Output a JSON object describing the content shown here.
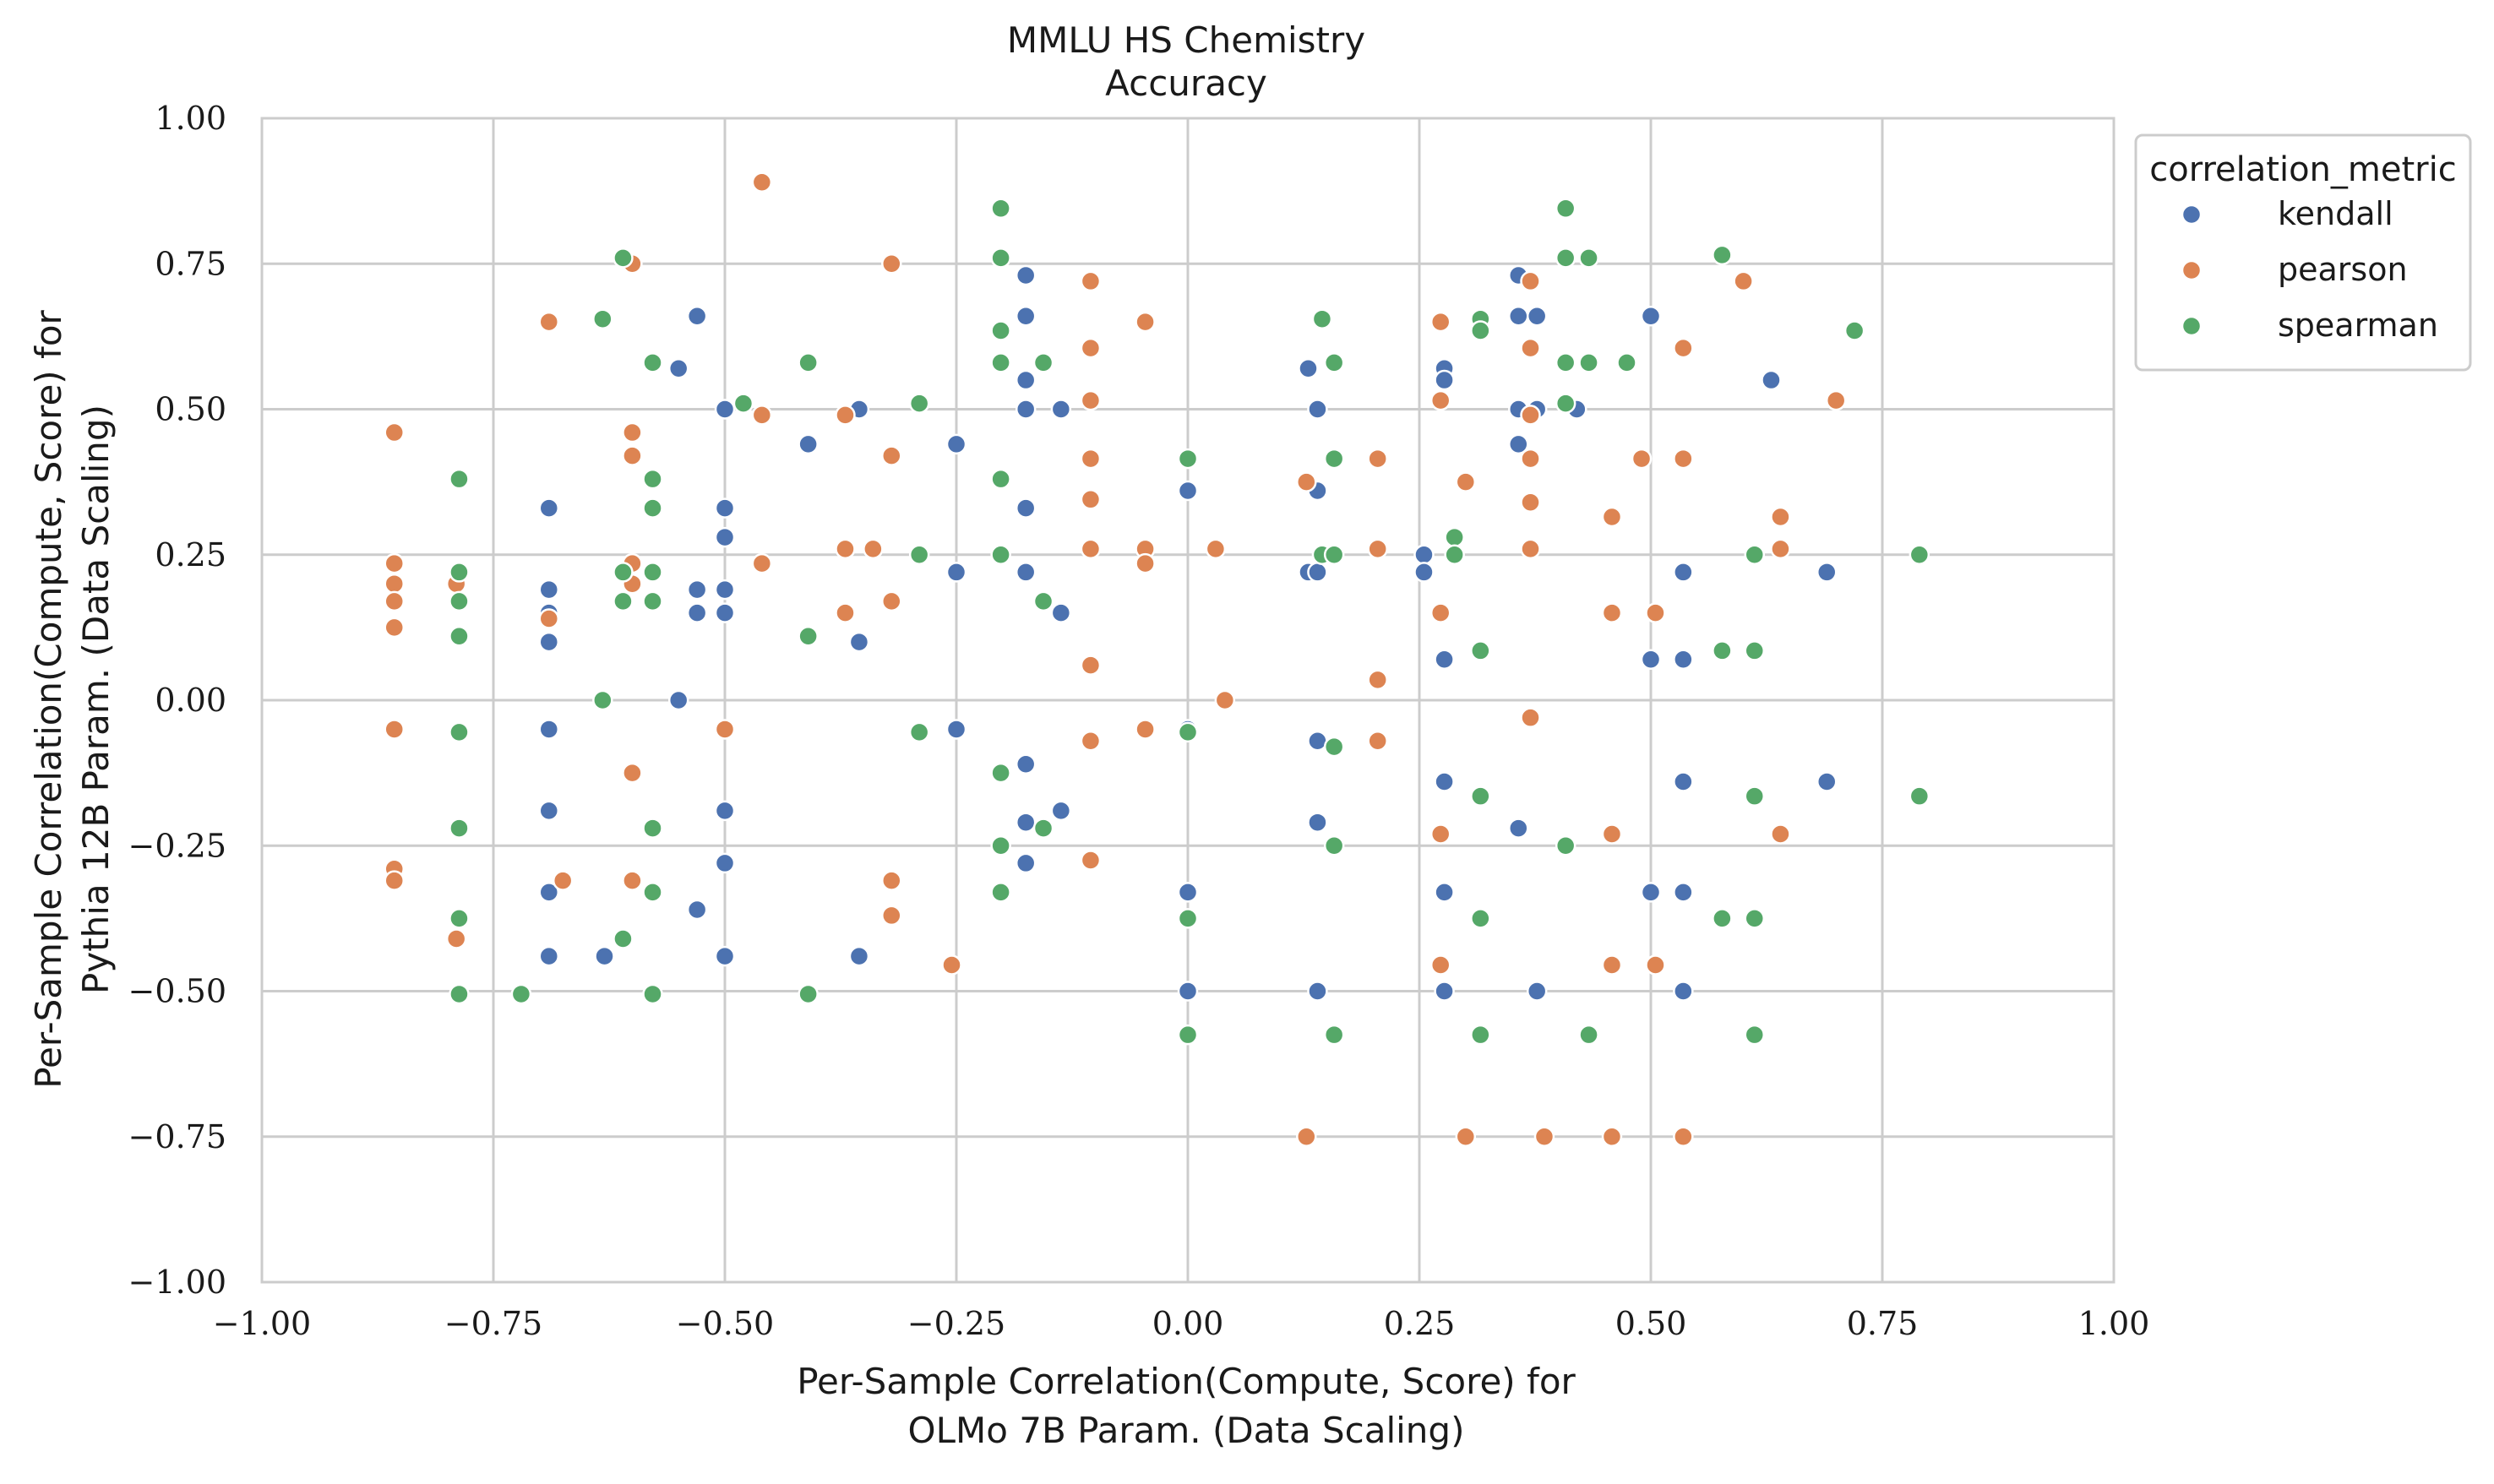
{
  "chart_data": {
    "type": "scatter",
    "title": "MMLU HS Chemistry",
    "subtitle": "Accuracy",
    "xlabel_line1": "Per-Sample Correlation(Compute, Score) for",
    "xlabel_line2": "OLMo 7B Param. (Data Scaling)",
    "ylabel_line1": "Per-Sample Correlation(Compute, Score) for",
    "ylabel_line2": "Pythia 12B Param. (Data Scaling)",
    "xlim": [
      -1.0,
      1.0
    ],
    "ylim": [
      -1.0,
      1.0
    ],
    "xticks": [
      -1.0,
      -0.75,
      -0.5,
      -0.25,
      0.0,
      0.25,
      0.5,
      0.75,
      1.0
    ],
    "yticks": [
      -1.0,
      -0.75,
      -0.5,
      -0.25,
      0.0,
      0.25,
      0.5,
      0.75,
      1.0
    ],
    "xtick_labels": [
      "−1.00",
      "−0.75",
      "−0.50",
      "−0.25",
      "0.00",
      "0.25",
      "0.50",
      "0.75",
      "1.00"
    ],
    "ytick_labels": [
      "−1.00",
      "−0.75",
      "−0.50",
      "−0.25",
      "0.00",
      "0.25",
      "0.50",
      "0.75",
      "1.00"
    ],
    "grid": true,
    "legend": {
      "title": "correlation_metric",
      "placement": "outside-right-top"
    },
    "series": [
      {
        "name": "kendall",
        "color": "#4c72b0",
        "points": [
          [
            -0.69,
            0.33
          ],
          [
            -0.69,
            0.19
          ],
          [
            -0.69,
            0.15
          ],
          [
            -0.69,
            0.1
          ],
          [
            -0.69,
            -0.05
          ],
          [
            -0.69,
            -0.19
          ],
          [
            -0.69,
            -0.33
          ],
          [
            -0.69,
            -0.44
          ],
          [
            -0.63,
            -0.44
          ],
          [
            -0.55,
            0.57
          ],
          [
            -0.53,
            0.66
          ],
          [
            -0.53,
            0.19
          ],
          [
            -0.53,
            0.15
          ],
          [
            -0.55,
            0.0
          ],
          [
            -0.53,
            -0.36
          ],
          [
            -0.5,
            0.5
          ],
          [
            -0.5,
            0.33
          ],
          [
            -0.5,
            0.28
          ],
          [
            -0.5,
            0.19
          ],
          [
            -0.5,
            0.15
          ],
          [
            -0.5,
            -0.19
          ],
          [
            -0.5,
            -0.28
          ],
          [
            -0.5,
            -0.44
          ],
          [
            -0.41,
            0.44
          ],
          [
            -0.355,
            0.5
          ],
          [
            -0.355,
            0.1
          ],
          [
            -0.355,
            -0.44
          ],
          [
            -0.25,
            0.44
          ],
          [
            -0.25,
            0.22
          ],
          [
            -0.25,
            -0.05
          ],
          [
            -0.175,
            0.73
          ],
          [
            -0.175,
            0.66
          ],
          [
            -0.175,
            0.55
          ],
          [
            -0.175,
            0.5
          ],
          [
            -0.175,
            0.33
          ],
          [
            -0.175,
            0.22
          ],
          [
            -0.175,
            -0.11
          ],
          [
            -0.175,
            -0.21
          ],
          [
            -0.175,
            -0.28
          ],
          [
            -0.137,
            0.5
          ],
          [
            -0.137,
            0.15
          ],
          [
            -0.137,
            -0.19
          ],
          [
            0.0,
            0.36
          ],
          [
            0.0,
            -0.05
          ],
          [
            0.0,
            -0.33
          ],
          [
            0.0,
            -0.5
          ],
          [
            0.13,
            0.57
          ],
          [
            0.13,
            0.22
          ],
          [
            0.14,
            0.22
          ],
          [
            0.14,
            0.5
          ],
          [
            0.14,
            0.36
          ],
          [
            0.14,
            -0.07
          ],
          [
            0.14,
            -0.21
          ],
          [
            0.14,
            -0.5
          ],
          [
            0.255,
            0.25
          ],
          [
            0.255,
            0.22
          ],
          [
            0.277,
            0.57
          ],
          [
            0.277,
            0.55
          ],
          [
            0.277,
            0.07
          ],
          [
            0.277,
            -0.14
          ],
          [
            0.277,
            -0.33
          ],
          [
            0.277,
            -0.5
          ],
          [
            0.357,
            0.73
          ],
          [
            0.357,
            0.66
          ],
          [
            0.357,
            0.5
          ],
          [
            0.357,
            0.44
          ],
          [
            0.357,
            -0.22
          ],
          [
            0.377,
            0.66
          ],
          [
            0.377,
            0.5
          ],
          [
            0.377,
            -0.5
          ],
          [
            0.42,
            0.5
          ],
          [
            0.5,
            0.66
          ],
          [
            0.5,
            0.07
          ],
          [
            0.5,
            -0.33
          ],
          [
            0.535,
            0.22
          ],
          [
            0.535,
            0.07
          ],
          [
            0.535,
            -0.14
          ],
          [
            0.535,
            -0.33
          ],
          [
            0.535,
            -0.5
          ],
          [
            0.63,
            0.55
          ],
          [
            0.69,
            0.22
          ],
          [
            0.69,
            -0.14
          ]
        ]
      },
      {
        "name": "pearson",
        "color": "#dd8452",
        "points": [
          [
            -0.857,
            0.46
          ],
          [
            -0.857,
            0.235
          ],
          [
            -0.857,
            0.2
          ],
          [
            -0.857,
            0.17
          ],
          [
            -0.857,
            0.125
          ],
          [
            -0.857,
            -0.05
          ],
          [
            -0.857,
            -0.29
          ],
          [
            -0.857,
            -0.31
          ],
          [
            -0.79,
            0.2
          ],
          [
            -0.79,
            -0.41
          ],
          [
            -0.69,
            0.65
          ],
          [
            -0.69,
            0.14
          ],
          [
            -0.675,
            -0.31
          ],
          [
            -0.6,
            0.75
          ],
          [
            -0.6,
            0.46
          ],
          [
            -0.6,
            0.42
          ],
          [
            -0.6,
            0.235
          ],
          [
            -0.6,
            0.2
          ],
          [
            -0.6,
            -0.125
          ],
          [
            -0.6,
            -0.31
          ],
          [
            -0.5,
            -0.05
          ],
          [
            -0.46,
            0.89
          ],
          [
            -0.46,
            0.49
          ],
          [
            -0.46,
            0.235
          ],
          [
            -0.37,
            0.49
          ],
          [
            -0.37,
            0.26
          ],
          [
            -0.37,
            0.15
          ],
          [
            -0.34,
            0.26
          ],
          [
            -0.32,
            0.75
          ],
          [
            -0.32,
            0.42
          ],
          [
            -0.32,
            0.17
          ],
          [
            -0.32,
            -0.31
          ],
          [
            -0.32,
            -0.37
          ],
          [
            -0.255,
            -0.455
          ],
          [
            -0.105,
            0.72
          ],
          [
            -0.105,
            0.605
          ],
          [
            -0.105,
            0.515
          ],
          [
            -0.105,
            0.415
          ],
          [
            -0.105,
            0.345
          ],
          [
            -0.105,
            0.26
          ],
          [
            -0.105,
            0.06
          ],
          [
            -0.105,
            -0.07
          ],
          [
            -0.105,
            -0.275
          ],
          [
            -0.046,
            0.65
          ],
          [
            -0.046,
            0.26
          ],
          [
            -0.046,
            0.235
          ],
          [
            -0.046,
            -0.05
          ],
          [
            0.03,
            0.26
          ],
          [
            0.04,
            0.0
          ],
          [
            0.128,
            0.375
          ],
          [
            0.128,
            -0.75
          ],
          [
            0.205,
            0.415
          ],
          [
            0.205,
            0.26
          ],
          [
            0.205,
            0.035
          ],
          [
            0.205,
            -0.07
          ],
          [
            0.273,
            0.65
          ],
          [
            0.273,
            0.515
          ],
          [
            0.273,
            0.15
          ],
          [
            0.273,
            -0.23
          ],
          [
            0.273,
            -0.455
          ],
          [
            0.3,
            0.375
          ],
          [
            0.3,
            -0.75
          ],
          [
            0.37,
            0.72
          ],
          [
            0.37,
            0.605
          ],
          [
            0.37,
            0.49
          ],
          [
            0.37,
            0.415
          ],
          [
            0.37,
            0.34
          ],
          [
            0.37,
            0.26
          ],
          [
            0.37,
            -0.03
          ],
          [
            0.385,
            -0.75
          ],
          [
            0.458,
            0.315
          ],
          [
            0.458,
            0.15
          ],
          [
            0.458,
            -0.23
          ],
          [
            0.458,
            -0.455
          ],
          [
            0.458,
            -0.75
          ],
          [
            0.49,
            0.415
          ],
          [
            0.505,
            0.15
          ],
          [
            0.505,
            -0.455
          ],
          [
            0.535,
            0.605
          ],
          [
            0.535,
            0.415
          ],
          [
            0.535,
            -0.75
          ],
          [
            0.6,
            0.72
          ],
          [
            0.64,
            0.315
          ],
          [
            0.64,
            0.26
          ],
          [
            0.64,
            -0.23
          ],
          [
            0.7,
            0.515
          ]
        ]
      },
      {
        "name": "spearman",
        "color": "#55a868",
        "points": [
          [
            -0.787,
            0.38
          ],
          [
            -0.787,
            0.22
          ],
          [
            -0.787,
            0.17
          ],
          [
            -0.787,
            0.11
          ],
          [
            -0.787,
            -0.055
          ],
          [
            -0.787,
            -0.22
          ],
          [
            -0.787,
            -0.375
          ],
          [
            -0.787,
            -0.505
          ],
          [
            -0.72,
            -0.505
          ],
          [
            -0.632,
            0.655
          ],
          [
            -0.632,
            0.0
          ],
          [
            -0.61,
            0.76
          ],
          [
            -0.61,
            0.22
          ],
          [
            -0.61,
            0.17
          ],
          [
            -0.61,
            -0.41
          ],
          [
            -0.578,
            0.58
          ],
          [
            -0.578,
            0.38
          ],
          [
            -0.578,
            0.33
          ],
          [
            -0.578,
            0.22
          ],
          [
            -0.578,
            0.17
          ],
          [
            -0.578,
            -0.22
          ],
          [
            -0.578,
            -0.33
          ],
          [
            -0.578,
            -0.505
          ],
          [
            -0.48,
            0.51
          ],
          [
            -0.41,
            0.58
          ],
          [
            -0.41,
            0.11
          ],
          [
            -0.41,
            -0.505
          ],
          [
            -0.29,
            0.51
          ],
          [
            -0.29,
            0.25
          ],
          [
            -0.29,
            -0.055
          ],
          [
            -0.202,
            0.845
          ],
          [
            -0.202,
            0.76
          ],
          [
            -0.202,
            0.635
          ],
          [
            -0.202,
            0.58
          ],
          [
            -0.202,
            0.38
          ],
          [
            -0.202,
            0.25
          ],
          [
            -0.202,
            -0.125
          ],
          [
            -0.202,
            -0.25
          ],
          [
            -0.202,
            -0.33
          ],
          [
            -0.156,
            0.58
          ],
          [
            -0.156,
            0.17
          ],
          [
            -0.156,
            -0.22
          ],
          [
            0.0,
            0.415
          ],
          [
            0.0,
            -0.055
          ],
          [
            0.0,
            -0.375
          ],
          [
            0.0,
            -0.575
          ],
          [
            0.145,
            0.655
          ],
          [
            0.145,
            0.25
          ],
          [
            0.158,
            0.58
          ],
          [
            0.158,
            0.415
          ],
          [
            0.158,
            0.25
          ],
          [
            0.158,
            -0.08
          ],
          [
            0.158,
            -0.25
          ],
          [
            0.158,
            -0.575
          ],
          [
            0.288,
            0.28
          ],
          [
            0.288,
            0.25
          ],
          [
            0.316,
            0.655
          ],
          [
            0.316,
            0.635
          ],
          [
            0.316,
            0.085
          ],
          [
            0.316,
            -0.165
          ],
          [
            0.316,
            -0.375
          ],
          [
            0.316,
            -0.575
          ],
          [
            0.408,
            0.845
          ],
          [
            0.408,
            0.76
          ],
          [
            0.408,
            0.58
          ],
          [
            0.408,
            0.51
          ],
          [
            0.408,
            -0.25
          ],
          [
            0.433,
            0.76
          ],
          [
            0.433,
            0.58
          ],
          [
            0.433,
            -0.575
          ],
          [
            0.474,
            0.58
          ],
          [
            0.577,
            0.765
          ],
          [
            0.577,
            0.085
          ],
          [
            0.577,
            -0.375
          ],
          [
            0.612,
            0.25
          ],
          [
            0.612,
            0.085
          ],
          [
            0.612,
            -0.165
          ],
          [
            0.612,
            -0.375
          ],
          [
            0.612,
            -0.575
          ],
          [
            0.72,
            0.635
          ],
          [
            0.79,
            0.25
          ],
          [
            0.79,
            -0.165
          ]
        ]
      }
    ]
  }
}
